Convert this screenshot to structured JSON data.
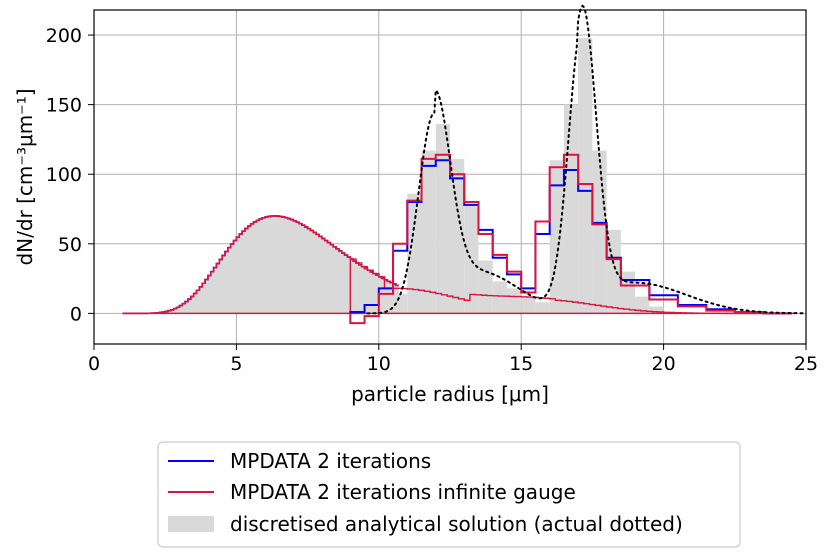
{
  "chart_data": {
    "type": "line",
    "xlabel": "particle radius [μm]",
    "ylabel": "dN/dr [cm⁻³μm⁻¹]",
    "xlim": [
      0,
      25
    ],
    "ylim": [
      -22,
      218
    ],
    "xticks": [
      "0",
      "5",
      "10",
      "15",
      "20",
      "25"
    ],
    "yticks": [
      "0",
      "50",
      "100",
      "150",
      "200"
    ],
    "grid": true,
    "legend_position": "below plot",
    "legend": [
      {
        "label": "MPDATA 2 iterations",
        "color": "#0000ff",
        "kind": "line"
      },
      {
        "label": "MPDATA 2 iterations infinite gauge",
        "color": "#dc143c",
        "kind": "line"
      },
      {
        "label": "discretised analytical solution (actual dotted)",
        "color": "#d9d9d9",
        "kind": "patch"
      }
    ],
    "series": [
      {
        "name": "discretised analytical solution (actual dotted)",
        "style": "filled-steps",
        "edges_x": [
          9.5,
          10.0,
          10.5,
          11.0,
          11.5,
          12.0,
          12.5,
          13.0,
          13.5,
          14.0,
          14.5,
          15.0,
          15.5,
          16.0,
          16.5,
          17.0,
          17.5,
          18.0,
          18.5,
          19.0,
          19.5,
          20.0
        ],
        "values": [
          2,
          4,
          14,
          86,
          117,
          136,
          111,
          78,
          38,
          23,
          18,
          12,
          8,
          110,
          150,
          198,
          117,
          60,
          30,
          12,
          5
        ]
      },
      {
        "name": "MPDATA 2 iterations",
        "style": "steps",
        "edges_x": [
          9.0,
          9.5,
          10.0,
          10.5,
          11.0,
          11.5,
          12.0,
          12.5,
          13.0,
          13.5,
          14.0,
          14.5,
          15.0,
          15.5,
          16.0,
          16.5,
          17.0,
          17.5,
          18.0,
          18.5,
          19.5,
          20.5,
          21.5,
          22.5,
          23.5,
          24.5
        ],
        "values": [
          1,
          6,
          18,
          45,
          80,
          106,
          110,
          97,
          78,
          60,
          40,
          28,
          18,
          57,
          92,
          103,
          88,
          65,
          40,
          24,
          13,
          6,
          3,
          1,
          0
        ]
      },
      {
        "name": "MPDATA 2 iterations infinite gauge",
        "style": "steps",
        "edges_x": [
          9.0,
          9.5,
          10.0,
          10.5,
          11.0,
          11.5,
          12.0,
          12.5,
          13.0,
          13.5,
          14.0,
          14.5,
          15.0,
          15.5,
          16.0,
          16.5,
          17.0,
          17.5,
          18.0,
          18.5,
          19.5,
          20.5,
          21.5,
          22.5,
          23.5,
          24.5
        ],
        "values": [
          -7,
          -2,
          14,
          50,
          81,
          111,
          114,
          100,
          80,
          57,
          42,
          30,
          15,
          66,
          105,
          114,
          93,
          64,
          39,
          20,
          10,
          5,
          2,
          1,
          0
        ]
      },
      {
        "name": "actual analytical solution",
        "style": "dotted",
        "color": "#000000"
      }
    ]
  }
}
